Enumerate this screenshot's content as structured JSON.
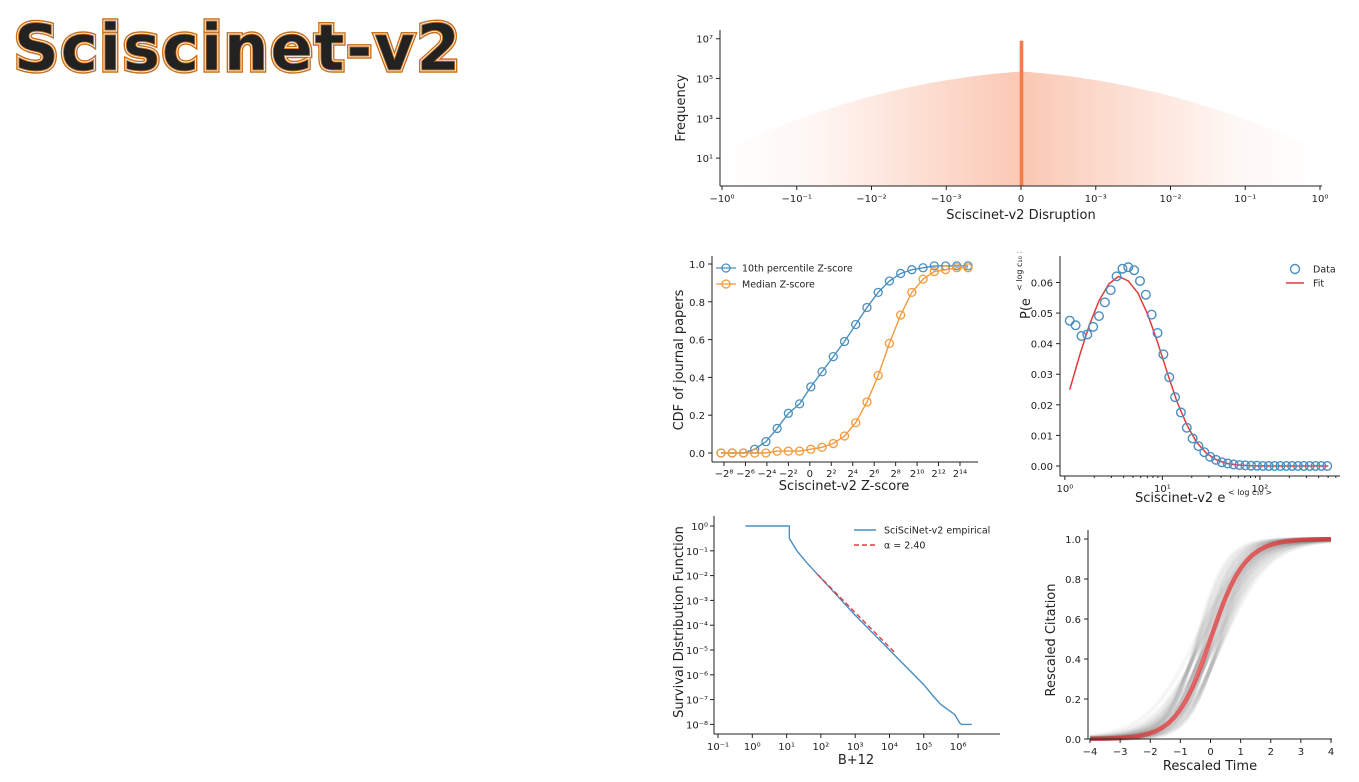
{
  "logo": {
    "text": "Sciscinet-v2",
    "color": "#c8711d"
  },
  "colors": {
    "orange_hist": "#f47c4c",
    "blue": "#4a8fc0",
    "orange": "#f39a3c",
    "red": "#e33b3b",
    "gray": "#888888"
  },
  "chart_data": [
    {
      "id": "disruption",
      "type": "bar",
      "title": "",
      "xlabel": "Sciscinet-v2 Disruption",
      "ylabel": "Frequency",
      "xticks": [
        "−10⁰",
        "−10⁻¹",
        "−10⁻²",
        "−10⁻³",
        "0",
        "10⁻³",
        "10⁻²",
        "10⁻¹",
        "10⁰"
      ],
      "yticks": [
        "10¹",
        "10³",
        "10⁵",
        "10⁷"
      ],
      "yticks_log": [
        1,
        3,
        5,
        7
      ],
      "center_spike_log": 6.9,
      "peak_log": 5.6,
      "fade_out_at": [
        "−10⁰",
        "10⁰"
      ]
    },
    {
      "id": "zscore_cdf",
      "type": "line",
      "xlabel": "Sciscinet-v2 Z-score",
      "ylabel": "CDF of journal papers",
      "xticks": [
        "−2⁸",
        "−2⁶",
        "−2⁴",
        "−2²",
        "0",
        "2²",
        "2⁴",
        "2⁶",
        "2⁸",
        "2¹⁰",
        "2¹²",
        "2¹⁴"
      ],
      "yticks": [
        "0.0",
        "0.2",
        "0.4",
        "0.6",
        "0.8",
        "1.0"
      ],
      "ylim": [
        0,
        1
      ],
      "legend": [
        "10th percentile Z-score",
        "Median Z-score"
      ],
      "series": [
        {
          "name": "10th percentile Z-score",
          "values": [
            0.0,
            0.0,
            0.0,
            0.02,
            0.06,
            0.13,
            0.21,
            0.26,
            0.35,
            0.43,
            0.51,
            0.59,
            0.68,
            0.77,
            0.85,
            0.91,
            0.95,
            0.97,
            0.98,
            0.99,
            0.99,
            0.99,
            0.99
          ]
        },
        {
          "name": "Median Z-score",
          "values": [
            0.0,
            0.0,
            0.0,
            0.0,
            0.0,
            0.01,
            0.01,
            0.01,
            0.02,
            0.03,
            0.05,
            0.09,
            0.16,
            0.27,
            0.41,
            0.58,
            0.73,
            0.85,
            0.92,
            0.96,
            0.97,
            0.98,
            0.98
          ]
        }
      ]
    },
    {
      "id": "elog",
      "type": "scatter",
      "xlabel": "Sciscinet-v2 e^{<log c10>}",
      "ylabel": "P(e^{<log c10>})",
      "xticks": [
        "10⁰",
        "10¹",
        "10²"
      ],
      "yticks": [
        "0.00",
        "0.01",
        "0.02",
        "0.03",
        "0.04",
        "0.05",
        "0.06"
      ],
      "ylim": [
        0,
        0.068
      ],
      "xlim_log": [
        -0.05,
        2.78
      ],
      "legend": [
        "Data",
        "Fit"
      ],
      "x_log": [
        0.05,
        0.11,
        0.17,
        0.23,
        0.29,
        0.35,
        0.41,
        0.47,
        0.53,
        0.59,
        0.65,
        0.71,
        0.77,
        0.83,
        0.89,
        0.95,
        1.01,
        1.07,
        1.13,
        1.19,
        1.25,
        1.31,
        1.37,
        1.43,
        1.49,
        1.55,
        1.61,
        1.67,
        1.73,
        1.79,
        1.85,
        1.91,
        1.97,
        2.03,
        2.09,
        2.15,
        2.21,
        2.27,
        2.33,
        2.39,
        2.45,
        2.51,
        2.57,
        2.63,
        2.69
      ],
      "data_values": [
        0.0475,
        0.046,
        0.0425,
        0.043,
        0.0455,
        0.049,
        0.0535,
        0.0575,
        0.062,
        0.0645,
        0.065,
        0.064,
        0.0605,
        0.056,
        0.0495,
        0.0435,
        0.0365,
        0.029,
        0.0225,
        0.0175,
        0.0125,
        0.009,
        0.0065,
        0.0045,
        0.003,
        0.002,
        0.0012,
        0.0008,
        0.0005,
        0.0003,
        0.0002,
        0.0001,
        0.0001,
        0,
        0,
        0,
        0,
        0,
        0,
        0,
        0,
        0,
        0,
        0,
        0
      ],
      "fit_x_log": [
        0.05,
        0.15,
        0.25,
        0.35,
        0.45,
        0.55,
        0.65,
        0.75,
        0.85,
        0.95,
        1.05,
        1.15,
        1.25,
        1.35,
        1.45,
        1.55,
        1.65,
        1.75,
        1.9,
        2.1,
        2.4,
        2.7
      ],
      "fit_values": [
        0.025,
        0.036,
        0.046,
        0.054,
        0.0595,
        0.062,
        0.0605,
        0.0565,
        0.0495,
        0.0405,
        0.0305,
        0.021,
        0.0135,
        0.0078,
        0.0042,
        0.0021,
        0.0009,
        0.0004,
        0.0001,
        0,
        0,
        0
      ]
    },
    {
      "id": "survival",
      "type": "line",
      "xlabel": "B+12",
      "ylabel": "Survival Distribution Function",
      "xticks": [
        "10⁻¹",
        "10⁰",
        "10¹",
        "10²",
        "10³",
        "10⁴",
        "10⁵",
        "10⁶"
      ],
      "xticks_log": [
        -1,
        0,
        1,
        2,
        3,
        4,
        5,
        6
      ],
      "yticks": [
        "10⁻⁸",
        "10⁻⁷",
        "10⁻⁶",
        "10⁻⁵",
        "10⁻⁴",
        "10⁻³",
        "10⁻²",
        "10⁻¹",
        "10⁰"
      ],
      "yticks_log": [
        -8,
        -7,
        -6,
        -5,
        -4,
        -3,
        -2,
        -1,
        0
      ],
      "legend": [
        "SciSciNet-v2 empirical",
        "α = 2.40"
      ],
      "empirical_logx": [
        -0.2,
        1.08,
        1.08,
        1.3,
        1.6,
        2.0,
        2.5,
        3.0,
        3.5,
        4.0,
        4.5,
        5.0,
        5.3,
        5.5,
        5.7,
        5.9,
        6.05,
        6.1,
        6.4
      ],
      "empirical_logy": [
        0,
        0,
        -0.5,
        -1.0,
        -1.5,
        -2.1,
        -2.85,
        -3.6,
        -4.3,
        -5.0,
        -5.7,
        -6.4,
        -6.9,
        -7.2,
        -7.4,
        -7.6,
        -7.95,
        -8.0,
        -8.0
      ],
      "fit_logx": [
        1.9,
        4.15
      ],
      "fit_logy": [
        -1.95,
        -5.1
      ]
    },
    {
      "id": "rescaled",
      "type": "line",
      "xlabel": "Rescaled Time",
      "ylabel": "Rescaled Citation",
      "xticks": [
        "−4",
        "−3",
        "−2",
        "−1",
        "0",
        "1",
        "2",
        "3",
        "4"
      ],
      "yticks": [
        "0.0",
        "0.2",
        "0.4",
        "0.6",
        "0.8",
        "1.0"
      ],
      "xlim": [
        -4,
        4
      ],
      "ylim": [
        0,
        1
      ]
    }
  ]
}
